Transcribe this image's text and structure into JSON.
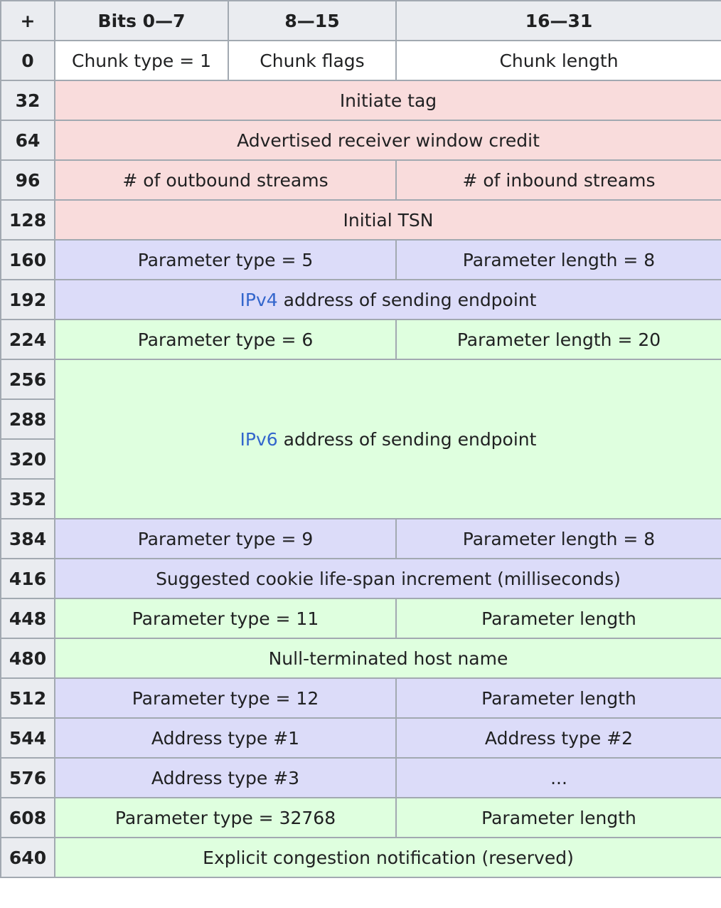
{
  "table": {
    "header": [
      "+",
      "Bits 0—7",
      "8—15",
      "16—31"
    ],
    "rows": [
      [
        "0",
        "Chunk type = 1",
        "Chunk flags",
        "Chunk length"
      ],
      [
        "32",
        "Initiate tag"
      ],
      [
        "64",
        "Advertised receiver window credit"
      ],
      [
        "96",
        "# of outbound streams",
        "# of inbound streams"
      ],
      [
        "128",
        "Initial TSN"
      ],
      [
        "160",
        "Parameter type = 5",
        "Parameter length = 8"
      ],
      [
        "192",
        {
          "link": "IPv4",
          "text": "address of sending endpoint"
        }
      ],
      [
        "224",
        "Parameter type = 6",
        "Parameter length = 20"
      ],
      [
        "256",
        {
          "link": "IPv6",
          "text": "address of sending endpoint"
        }
      ],
      [
        "288"
      ],
      [
        "320"
      ],
      [
        "352"
      ],
      [
        "384",
        "Parameter type = 9",
        "Parameter length = 8"
      ],
      [
        "416",
        "Suggested cookie life-span increment (milliseconds)"
      ],
      [
        "448",
        "Parameter type = 11",
        "Parameter length"
      ],
      [
        "480",
        "Null-terminated host name"
      ],
      [
        "512",
        "Parameter type = 12",
        "Parameter length"
      ],
      [
        "544",
        "Address type #1",
        "Address type #2"
      ],
      [
        "576",
        "Address type #3",
        "..."
      ],
      [
        "608",
        "Parameter type = 32768",
        "Parameter length"
      ],
      [
        "640",
        "Explicit congestion notification (reserved)"
      ]
    ]
  }
}
